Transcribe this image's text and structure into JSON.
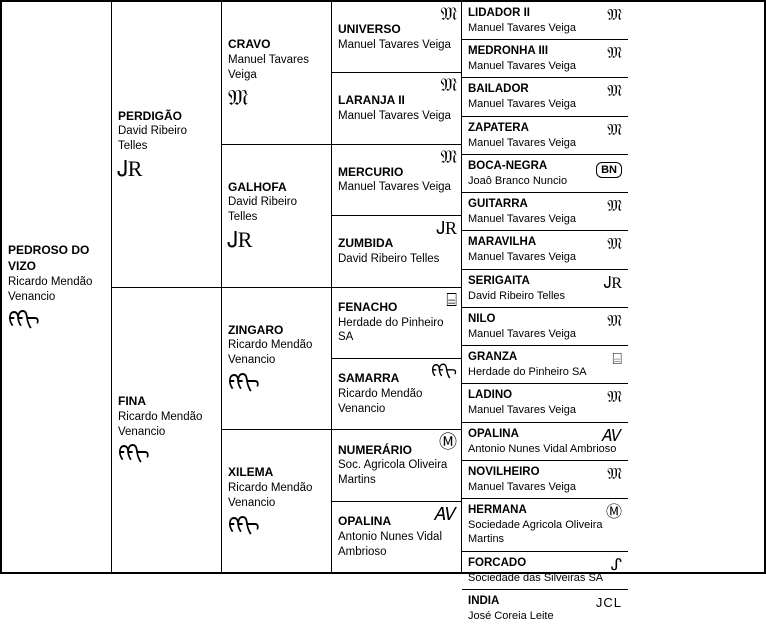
{
  "brands": {
    "mtv": "𝔐",
    "drt": "ᎫR",
    "rmv": "ᠻᠻᢈ",
    "hp": "⌸",
    "som": "Ⓜ",
    "anv": "𝐴𝑉",
    "ss": "ᔑ",
    "jcl": "JCL",
    "bn": "BN"
  },
  "root": {
    "name": "PEDROSO DO VIZO",
    "breeder": "Ricardo Mendão Venancio",
    "brand": "rmv"
  },
  "g1": [
    {
      "name": "PERDIGÃO",
      "breeder": "David Ribeiro Telles",
      "brand": "drt"
    },
    {
      "name": "FINA",
      "breeder": "Ricardo Mendão Venancio",
      "brand": "rmv"
    }
  ],
  "g2": [
    {
      "name": "CRAVO",
      "breeder": "Manuel Tavares Veiga",
      "brand": "mtv"
    },
    {
      "name": "GALHOFA",
      "breeder": "David Ribeiro Telles",
      "brand": "drt"
    },
    {
      "name": "ZINGARO",
      "breeder": "Ricardo Mendão Venancio",
      "brand": "rmv"
    },
    {
      "name": "XILEMA",
      "breeder": "Ricardo Mendão Venancio",
      "brand": "rmv"
    }
  ],
  "g3": [
    {
      "name": "UNIVERSO",
      "breeder": "Manuel Tavares Veiga",
      "brand": "mtv"
    },
    {
      "name": "LARANJA II",
      "breeder": "Manuel Tavares Veiga",
      "brand": "mtv"
    },
    {
      "name": "MERCURIO",
      "breeder": "Manuel Tavares Veiga",
      "brand": "mtv"
    },
    {
      "name": "ZUMBIDA",
      "breeder": "David Ribeiro Telles",
      "brand": "drt"
    },
    {
      "name": "FENACHO",
      "breeder": "Herdade do Pinheiro SA",
      "brand": "hp"
    },
    {
      "name": "SAMARRA",
      "breeder": "Ricardo Mendão Venancio",
      "brand": "rmv"
    },
    {
      "name": "NUMERÁRIO",
      "breeder": "Soc. Agricola Oliveira Martins",
      "brand": "som"
    },
    {
      "name": "OPALINA",
      "breeder": "Antonio Nunes Vidal Ambrioso",
      "brand": "anv"
    }
  ],
  "g4": [
    {
      "name": "LIDADOR II",
      "breeder": "Manuel Tavares Veiga",
      "brand": "mtv"
    },
    {
      "name": "MEDRONHA III",
      "breeder": "Manuel Tavares Veiga",
      "brand": "mtv"
    },
    {
      "name": "BAILADOR",
      "breeder": "Manuel Tavares Veiga",
      "brand": "mtv"
    },
    {
      "name": "ZAPATERA",
      "breeder": "Manuel Tavares Veiga",
      "brand": "mtv"
    },
    {
      "name": "BOCA-NEGRA",
      "breeder": "Joaô Branco Nuncio",
      "brand": "bn"
    },
    {
      "name": "GUITARRA",
      "breeder": "Manuel Tavares Veiga",
      "brand": "mtv"
    },
    {
      "name": "MARAVILHA",
      "breeder": "Manuel Tavares Veiga",
      "brand": "mtv"
    },
    {
      "name": "SERIGAITA",
      "breeder": "David Ribeiro Telles",
      "brand": "drt"
    },
    {
      "name": "NILO",
      "breeder": "Manuel Tavares Veiga",
      "brand": "mtv"
    },
    {
      "name": "GRANZA",
      "breeder": "Herdade do Pinheiro SA",
      "brand": "hp"
    },
    {
      "name": "LADINO",
      "breeder": "Manuel Tavares Veiga",
      "brand": "mtv"
    },
    {
      "name": "OPALINA",
      "breeder": "Antonio Nunes Vidal Ambrioso",
      "brand": "anv"
    },
    {
      "name": "NOVILHEIRO",
      "breeder": "Manuel Tavares Veiga",
      "brand": "mtv"
    },
    {
      "name": "HERMANA",
      "breeder": "Sociedade Agricola Oliveira Martins",
      "brand": "som"
    },
    {
      "name": "FORCADO",
      "breeder": "Sociedade das Silveiras SA",
      "brand": "ss"
    },
    {
      "name": "INDIA",
      "breeder": "José Coreia Leite",
      "brand": "jcl"
    }
  ]
}
